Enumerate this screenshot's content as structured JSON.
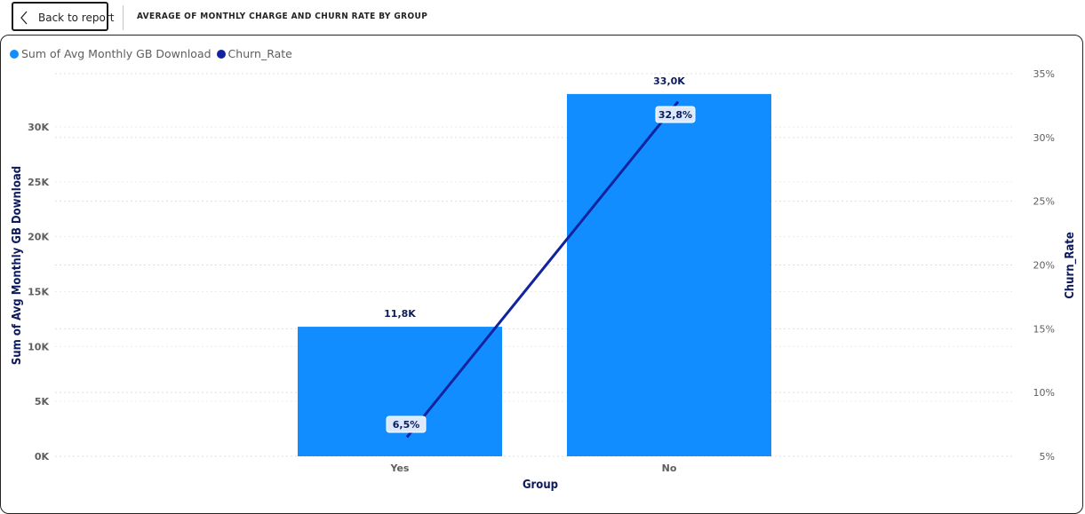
{
  "header": {
    "back_label": "Back to report",
    "title": "AVERAGE OF MONTHLY CHARGE AND CHURN RATE BY GROUP"
  },
  "legend": [
    {
      "label": "Sum of Avg Monthly GB Download",
      "color": "#118dff"
    },
    {
      "label": "Churn_Rate",
      "color": "#12239e"
    }
  ],
  "chart_data": {
    "type": "bar",
    "categories": [
      "Yes",
      "No"
    ],
    "series": [
      {
        "name": "Sum of Avg Monthly GB Download",
        "type": "bar",
        "axis": "left",
        "values": [
          11800,
          33000
        ],
        "labels": [
          "11,8K",
          "33,0K"
        ],
        "color": "#118dff"
      },
      {
        "name": "Churn_Rate",
        "type": "line",
        "axis": "right",
        "values": [
          6.5,
          32.8
        ],
        "labels": [
          "6,5%",
          "32,8%"
        ],
        "color": "#12239e"
      }
    ],
    "xlabel": "Group",
    "ylabel": "Sum of Avg Monthly GB Download",
    "y2label": "Churn_Rate",
    "ylim": [
      0,
      33000
    ],
    "y2lim": [
      5,
      35
    ],
    "yticks": [
      0,
      5000,
      10000,
      15000,
      20000,
      25000,
      30000
    ],
    "ytick_labels": [
      "0K",
      "5K",
      "10K",
      "15K",
      "20K",
      "25K",
      "30K"
    ],
    "y2ticks": [
      5,
      10,
      15,
      20,
      25,
      30,
      35
    ],
    "y2tick_labels": [
      "5%",
      "10%",
      "15%",
      "20%",
      "25%",
      "30%",
      "35%"
    ],
    "grid": true,
    "legend_position": "top-left"
  }
}
